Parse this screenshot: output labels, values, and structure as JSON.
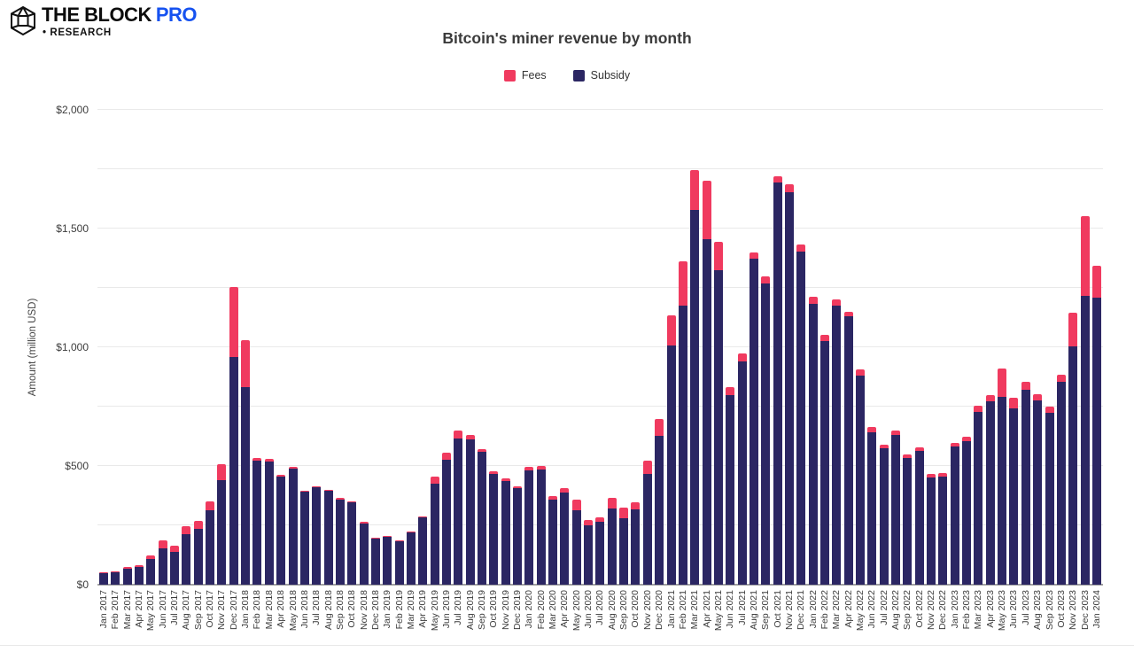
{
  "brand": {
    "name_primary": "THE BLOCK",
    "name_accent": "PRO",
    "research_label": "• RESEARCH",
    "accent_color": "#1652F0"
  },
  "chart_data": {
    "type": "bar",
    "stacked": true,
    "title": "Bitcoin's miner revenue by month",
    "ylabel": "Amount (million USD)",
    "ylim": [
      0,
      2000
    ],
    "gridline_interval": 250,
    "grid": true,
    "legend_position": "top-center",
    "yticks": [
      {
        "value": 0,
        "label": "$0"
      },
      {
        "value": 500,
        "label": "$500"
      },
      {
        "value": 1000,
        "label": "$1,000"
      },
      {
        "value": 1500,
        "label": "$1,500"
      },
      {
        "value": 2000,
        "label": "$2,000"
      }
    ],
    "legend": [
      {
        "name": "Fees",
        "color": "#F03A5F"
      },
      {
        "name": "Subsidy",
        "color": "#2B2663"
      }
    ],
    "categories": [
      "Jan 2017",
      "Feb 2017",
      "Mar 2017",
      "Apr 2017",
      "May 2017",
      "Jun 2017",
      "Jul 2017",
      "Aug 2017",
      "Sep 2017",
      "Oct 2017",
      "Nov 2017",
      "Dec 2017",
      "Jan 2018",
      "Feb 2018",
      "Mar 2018",
      "Apr 2018",
      "May 2018",
      "Jun 2018",
      "Jul 2018",
      "Aug 2018",
      "Sep 2018",
      "Oct 2018",
      "Nov 2018",
      "Dec 2018",
      "Jan 2019",
      "Feb 2019",
      "Mar 2019",
      "Apr 2019",
      "May 2019",
      "Jun 2019",
      "Jul 2019",
      "Aug 2019",
      "Sep 2019",
      "Oct 2019",
      "Nov 2019",
      "Dec 2019",
      "Jan 2020",
      "Feb 2020",
      "Mar 2020",
      "Apr 2020",
      "May 2020",
      "Jun 2020",
      "Jul 2020",
      "Aug 2020",
      "Sep 2020",
      "Oct 2020",
      "Nov 2020",
      "Dec 2020",
      "Jan 2021",
      "Feb 2021",
      "Mar 2021",
      "Apr 2021",
      "May 2021",
      "Jun 2021",
      "Jul 2021",
      "Aug 2021",
      "Sep 2021",
      "Oct 2021",
      "Nov 2021",
      "Dec 2021",
      "Jan 2022",
      "Feb 2022",
      "Mar 2022",
      "Apr 2022",
      "May 2022",
      "Jun 2022",
      "Jul 2022",
      "Aug 2022",
      "Sep 2022",
      "Oct 2022",
      "Nov 2022",
      "Dec 2022",
      "Jan 2023",
      "Feb 2023",
      "Mar 2023",
      "Apr 2023",
      "May 2023",
      "Jun 2023",
      "Jul 2023",
      "Aug 2023",
      "Sep 2023",
      "Oct 2023",
      "Nov 2023",
      "Dec 2023",
      "Jan 2024"
    ],
    "series": [
      {
        "name": "Subsidy",
        "color": "#2B2663",
        "values": [
          49,
          53,
          66,
          73,
          107,
          152,
          139,
          214,
          236,
          314,
          442,
          960,
          833,
          522,
          520,
          456,
          490,
          390,
          410,
          394,
          359,
          346,
          259,
          194,
          202,
          183,
          219,
          283,
          426,
          526,
          615,
          611,
          560,
          466,
          435,
          406,
          483,
          485,
          358,
          389,
          314,
          251,
          264,
          322,
          279,
          317,
          467,
          628,
          1009,
          1175,
          1577,
          1455,
          1325,
          800,
          940,
          1372,
          1268,
          1693,
          1654,
          1404,
          1183,
          1025,
          1174,
          1129,
          881,
          642,
          574,
          631,
          532,
          563,
          451,
          455,
          582,
          605,
          728,
          772,
          790,
          742,
          820,
          778,
          725,
          856,
          1003,
          1218,
          1208
        ]
      },
      {
        "name": "Fees",
        "color": "#F03A5F",
        "values": [
          3,
          3,
          8,
          8,
          16,
          34,
          25,
          31,
          32,
          37,
          65,
          292,
          196,
          13,
          10,
          8,
          8,
          6,
          6,
          7,
          5,
          5,
          5,
          5,
          4,
          4,
          4,
          6,
          31,
          31,
          35,
          18,
          12,
          12,
          12,
          10,
          12,
          16,
          16,
          19,
          44,
          22,
          19,
          44,
          44,
          31,
          55,
          71,
          124,
          187,
          170,
          245,
          120,
          34,
          33,
          27,
          32,
          29,
          31,
          30,
          29,
          28,
          28,
          20,
          25,
          21,
          17,
          19,
          15,
          15,
          15,
          15,
          16,
          17,
          25,
          26,
          122,
          44,
          35,
          25,
          25,
          27,
          142,
          336,
          137
        ]
      }
    ]
  }
}
